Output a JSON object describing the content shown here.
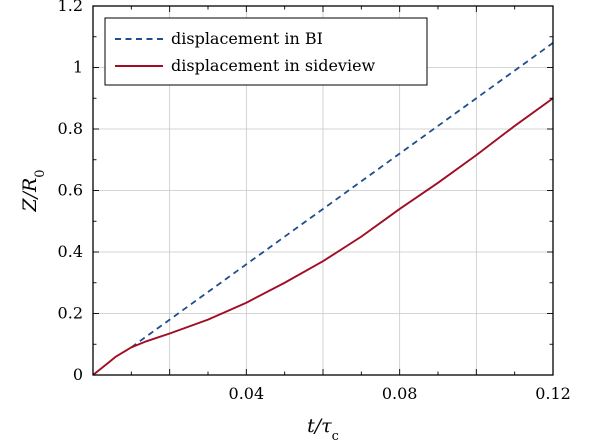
{
  "chart_data": {
    "type": "line",
    "xlabel": "t/τc",
    "ylabel": "Z/R0",
    "xlim": [
      0,
      0.12
    ],
    "ylim": [
      0,
      1.2
    ],
    "xticks": [
      0.04,
      0.08,
      0.12
    ],
    "xtick_labels": [
      "0.04",
      "0.08",
      "0.12"
    ],
    "yticks": [
      0,
      0.2,
      0.4,
      0.6,
      0.8,
      1.0,
      1.2
    ],
    "ytick_labels": [
      "0",
      "0.2",
      "0.4",
      "0.6",
      "0.8",
      "1",
      "1.2"
    ],
    "grid": true,
    "legend_position": "top-left",
    "series": [
      {
        "name": "displacement in BI",
        "color": "#1f4e8c",
        "style": "dashed",
        "x": [
          0.01,
          0.12
        ],
        "y": [
          0.09,
          1.08
        ]
      },
      {
        "name": "displacement in sideview",
        "color": "#a00d24",
        "style": "solid",
        "x": [
          0,
          0.002,
          0.004,
          0.006,
          0.008,
          0.01,
          0.014,
          0.02,
          0.03,
          0.04,
          0.05,
          0.06,
          0.07,
          0.08,
          0.09,
          0.1,
          0.11,
          0.12
        ],
        "y": [
          0,
          0.02,
          0.04,
          0.06,
          0.075,
          0.09,
          0.11,
          0.135,
          0.18,
          0.235,
          0.3,
          0.37,
          0.45,
          0.54,
          0.625,
          0.715,
          0.81,
          0.9
        ]
      }
    ]
  }
}
